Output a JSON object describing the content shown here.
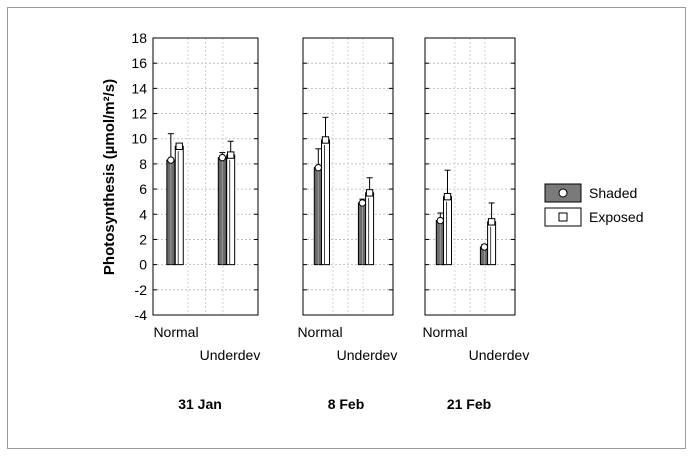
{
  "chart_data": {
    "type": "bar",
    "ylabel": "Photosynthesis (µmol/m²/s)",
    "ylim": [
      -4,
      18
    ],
    "yticks": [
      -4,
      -2,
      0,
      2,
      4,
      6,
      8,
      10,
      12,
      14,
      16,
      18
    ],
    "grid": true,
    "legend": {
      "position": "right",
      "entries": [
        "Shaded",
        "Exposed"
      ]
    },
    "series_styles": [
      {
        "name": "Shaded",
        "fill": "#6b6b6b",
        "marker": "circle"
      },
      {
        "name": "Exposed",
        "fill": "#ffffff",
        "marker": "square"
      }
    ],
    "panels": [
      {
        "date_label": "31 Jan",
        "categories": [
          "Normal",
          "Underdev"
        ],
        "series": [
          {
            "name": "Shaded",
            "values": [
              8.3,
              8.5
            ],
            "error_upper": [
              10.4,
              8.9
            ]
          },
          {
            "name": "Exposed",
            "values": [
              9.4,
              8.7
            ],
            "error_upper": [
              9.4,
              9.8
            ]
          }
        ]
      },
      {
        "date_label": "8 Feb",
        "categories": [
          "Normal",
          "Underdev"
        ],
        "series": [
          {
            "name": "Shaded",
            "values": [
              7.7,
              4.9
            ],
            "error_upper": [
              9.2,
              5.2
            ]
          },
          {
            "name": "Exposed",
            "values": [
              9.9,
              5.7
            ],
            "error_upper": [
              11.7,
              6.9
            ]
          }
        ]
      },
      {
        "date_label": "21 Feb",
        "categories": [
          "Normal",
          "Underdev"
        ],
        "series": [
          {
            "name": "Shaded",
            "values": [
              3.5,
              1.4
            ],
            "error_upper": [
              4.1,
              1.6
            ]
          },
          {
            "name": "Exposed",
            "values": [
              5.4,
              3.4
            ],
            "error_upper": [
              7.5,
              4.9
            ]
          }
        ]
      }
    ]
  }
}
